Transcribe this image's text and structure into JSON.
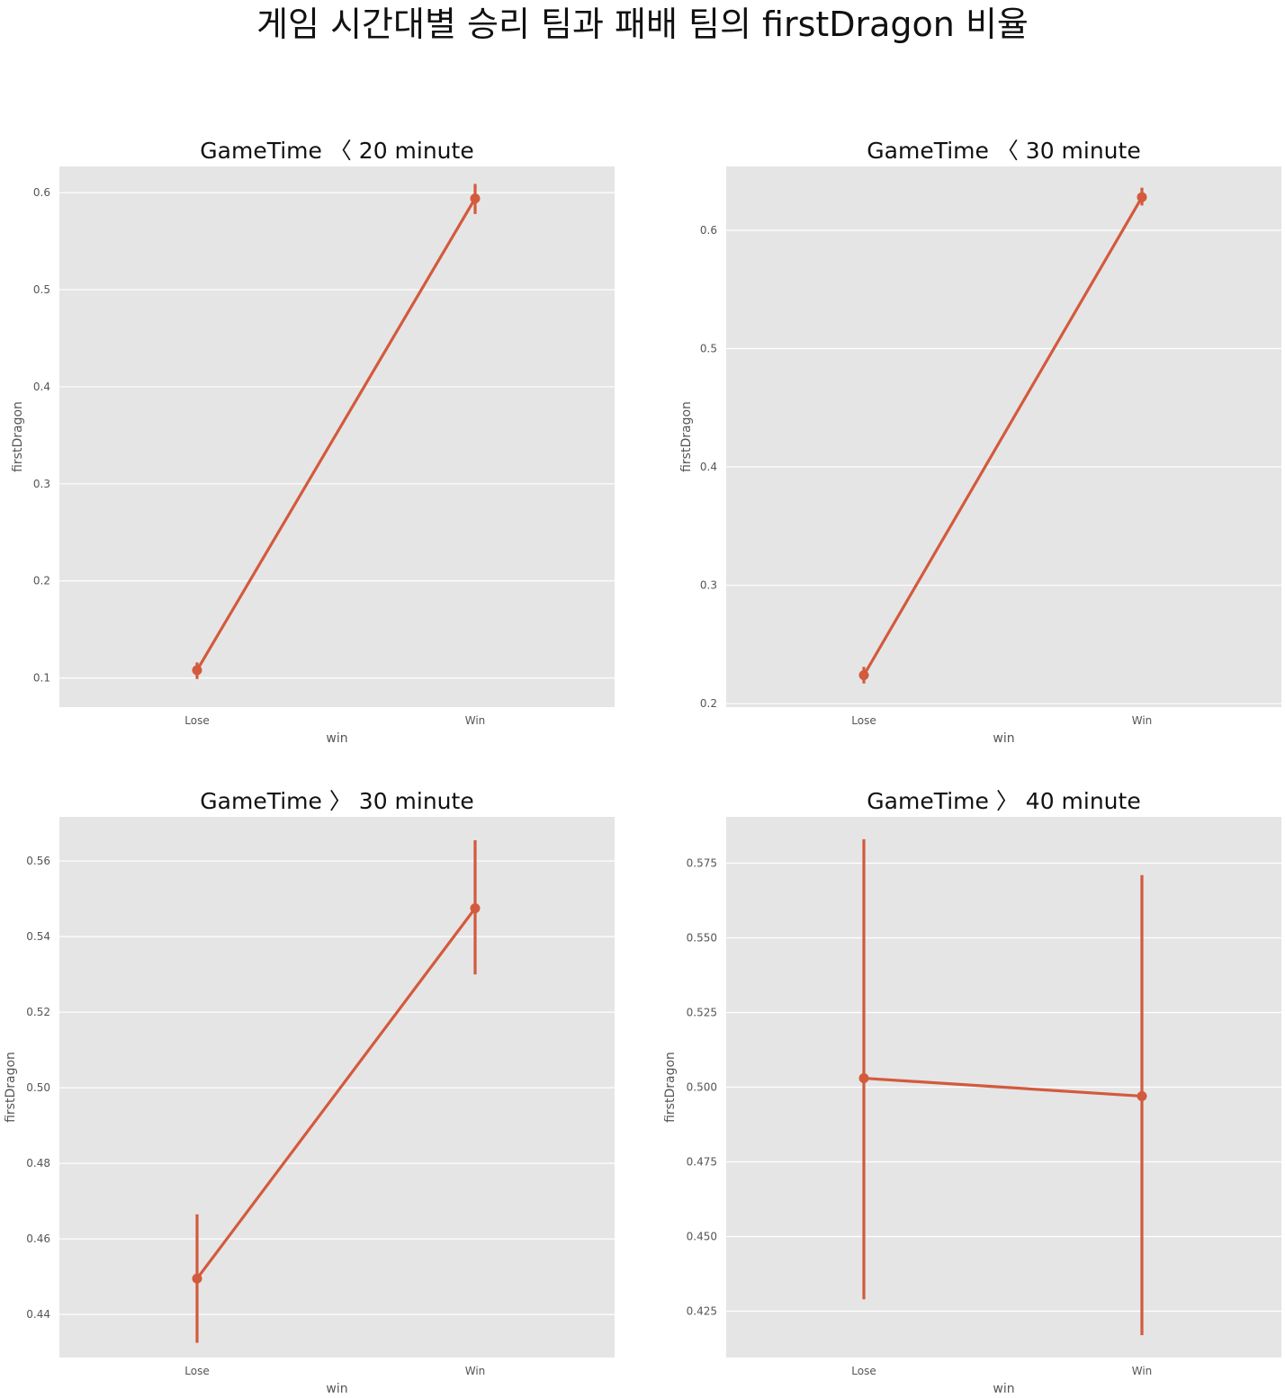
{
  "suptitle": "게임 시간대별 승리 팀과 패배 팀의 firstDragon 비율",
  "colors": {
    "panel_bg": "#e5e5e5",
    "grid": "#ffffff",
    "series": "#d35a3c"
  },
  "chart_data": [
    {
      "type": "line",
      "title": "GameTime 〈 20 minute",
      "xlabel": "win",
      "ylabel": "firstDragon",
      "categories": [
        "Lose",
        "Win"
      ],
      "values": [
        0.108,
        0.594
      ],
      "ci_low": [
        0.099,
        0.578
      ],
      "ci_high": [
        0.116,
        0.609
      ],
      "ylim": [
        0.07,
        0.627
      ],
      "yticks": [
        0.1,
        0.2,
        0.3,
        0.4,
        0.5,
        0.6
      ],
      "ytick_labels": [
        "0.1",
        "0.2",
        "0.3",
        "0.4",
        "0.5",
        "0.6"
      ],
      "grid": true
    },
    {
      "type": "line",
      "title": "GameTime 〈 30 minute",
      "xlabel": "win",
      "ylabel": "firstDragon",
      "categories": [
        "Lose",
        "Win"
      ],
      "values": [
        0.224,
        0.628
      ],
      "ci_low": [
        0.217,
        0.621
      ],
      "ci_high": [
        0.231,
        0.636
      ],
      "ylim": [
        0.197,
        0.654
      ],
      "yticks": [
        0.2,
        0.3,
        0.4,
        0.5,
        0.6
      ],
      "ytick_labels": [
        "0.2",
        "0.3",
        "0.4",
        "0.5",
        "0.6"
      ],
      "grid": true
    },
    {
      "type": "line",
      "title": "GameTime 〉 30 minute",
      "xlabel": "win",
      "ylabel": "firstDragon",
      "categories": [
        "Lose",
        "Win"
      ],
      "values": [
        0.4495,
        0.5475
      ],
      "ci_low": [
        0.4325,
        0.53
      ],
      "ci_high": [
        0.4665,
        0.5655
      ],
      "ylim": [
        0.4286,
        0.5717
      ],
      "yticks": [
        0.44,
        0.46,
        0.48,
        0.5,
        0.52,
        0.54,
        0.56
      ],
      "ytick_labels": [
        "0.44",
        "0.46",
        "0.48",
        "0.50",
        "0.52",
        "0.54",
        "0.56"
      ],
      "grid": true
    },
    {
      "type": "line",
      "title": "GameTime 〉 40 minute",
      "xlabel": "win",
      "ylabel": "firstDragon",
      "categories": [
        "Lose",
        "Win"
      ],
      "values": [
        0.503,
        0.497
      ],
      "ci_low": [
        0.429,
        0.417
      ],
      "ci_high": [
        0.583,
        0.571
      ],
      "ylim": [
        0.4095,
        0.5905
      ],
      "yticks": [
        0.425,
        0.45,
        0.475,
        0.5,
        0.525,
        0.55,
        0.575
      ],
      "ytick_labels": [
        "0.425",
        "0.450",
        "0.475",
        "0.500",
        "0.525",
        "0.550",
        "0.575"
      ],
      "grid": true
    }
  ]
}
